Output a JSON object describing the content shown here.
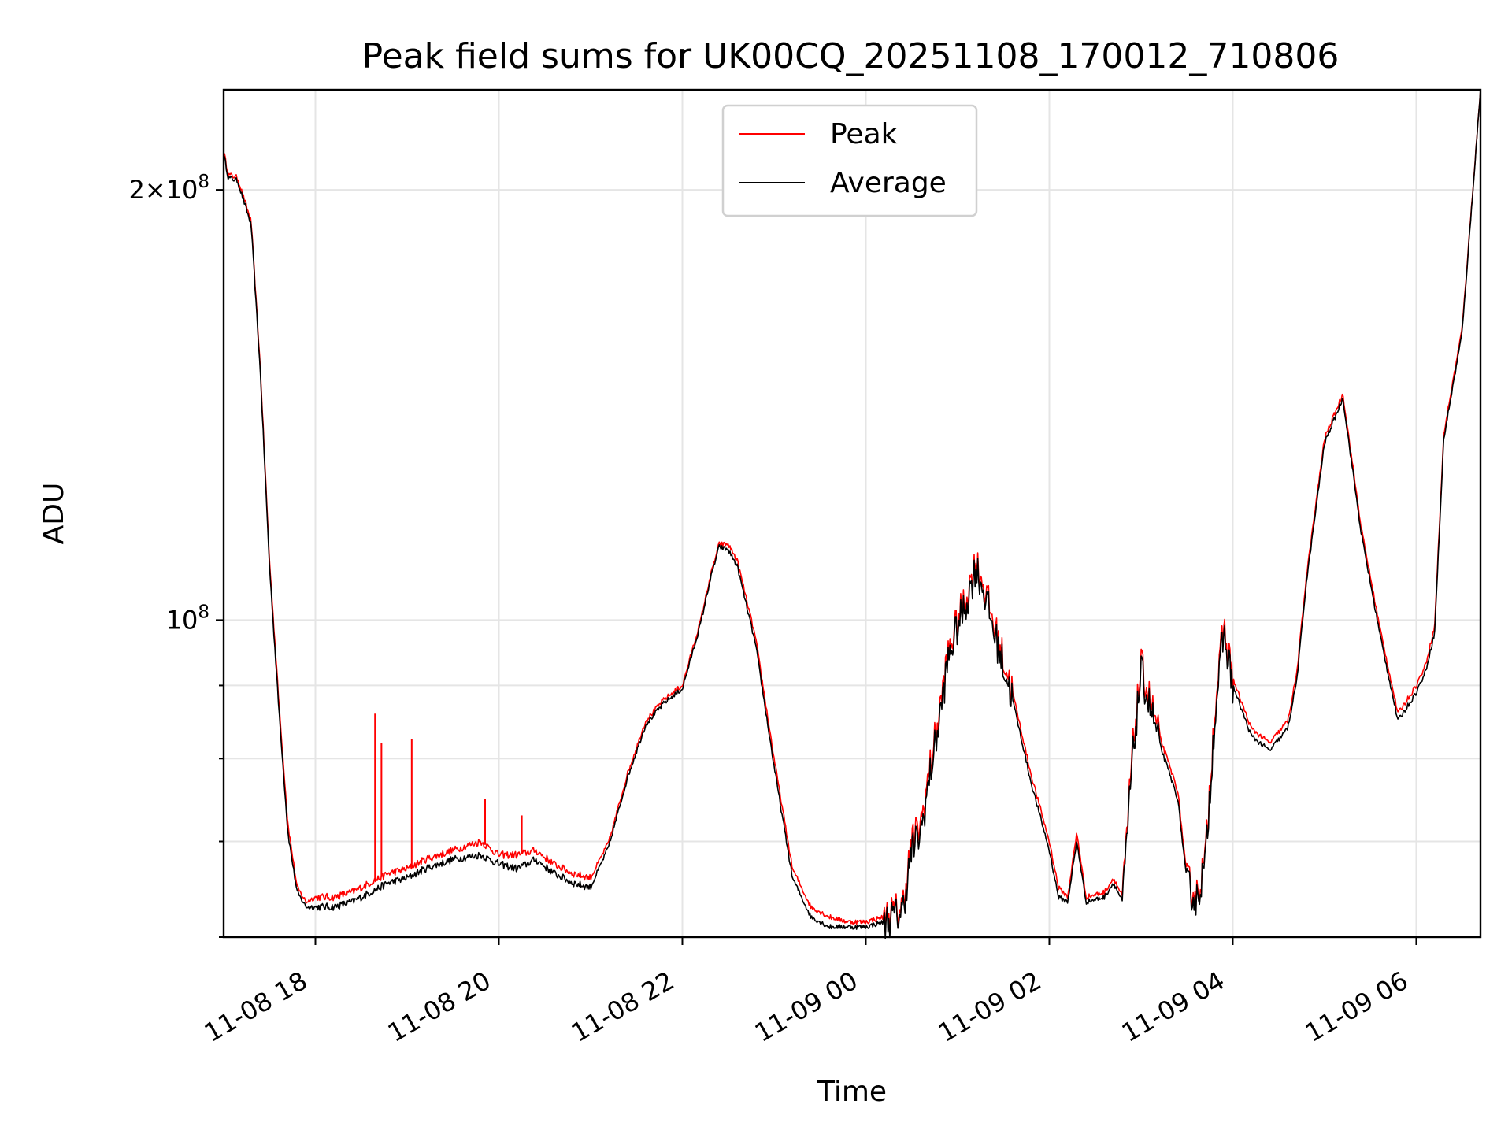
{
  "chart_data": {
    "type": "line",
    "title": "Peak field sums for UK00CQ_20251108_170012_710806",
    "xlabel": "Time",
    "ylabel": "ADU",
    "yscale": "log",
    "grid": true,
    "legend_position": "top-center",
    "x_ticks": [
      "11-08 18",
      "11-08 20",
      "11-08 22",
      "11-09 00",
      "11-09 02",
      "11-09 04",
      "11-09 06"
    ],
    "x_tick_hours": [
      18,
      20,
      22,
      24,
      26,
      28,
      30
    ],
    "x_range_hours": [
      17.0,
      30.7
    ],
    "y_range": [
      60000000,
      235000000
    ],
    "y_major_ticks": [
      {
        "value": 100000000,
        "label": "10^8"
      },
      {
        "value": 200000000,
        "label": "2×10^8"
      }
    ],
    "y_minor_ticks": [
      60000000,
      70000000,
      80000000,
      90000000
    ],
    "series": [
      {
        "name": "Peak",
        "color": "#ff0000",
        "hours": [
          17.0,
          17.05,
          17.15,
          17.3,
          17.4,
          17.5,
          17.6,
          17.7,
          17.8,
          17.9,
          18.0,
          18.2,
          18.4,
          18.6,
          18.8,
          19.0,
          19.2,
          19.5,
          19.8,
          20.0,
          20.2,
          20.4,
          20.6,
          20.8,
          21.0,
          21.2,
          21.4,
          21.6,
          21.8,
          22.0,
          22.2,
          22.3,
          22.4,
          22.5,
          22.6,
          22.8,
          23.0,
          23.2,
          23.4,
          23.6,
          23.8,
          24.0,
          24.2,
          24.4,
          24.5,
          24.6,
          24.7,
          24.8,
          24.9,
          25.0,
          25.1,
          25.2,
          25.3,
          25.4,
          25.6,
          25.8,
          26.0,
          26.1,
          26.2,
          26.3,
          26.4,
          26.6,
          26.7,
          26.8,
          26.9,
          27.0,
          27.2,
          27.4,
          27.5,
          27.6,
          27.7,
          27.8,
          27.9,
          28.0,
          28.2,
          28.4,
          28.6,
          28.7,
          28.8,
          29.0,
          29.2,
          29.4,
          29.6,
          29.8,
          30.0,
          30.1,
          30.2,
          30.3,
          30.5,
          30.7
        ],
        "values": [
          213000000,
          205000000,
          204000000,
          190000000,
          150000000,
          110000000,
          88000000,
          72000000,
          65000000,
          63500000,
          64000000,
          64000000,
          64500000,
          65500000,
          66500000,
          67000000,
          68000000,
          69000000,
          70000000,
          68500000,
          68500000,
          69000000,
          67500000,
          66500000,
          66000000,
          70000000,
          78000000,
          85000000,
          88000000,
          90000000,
          100000000,
          107000000,
          113000000,
          113000000,
          110000000,
          97000000,
          80000000,
          67000000,
          63000000,
          62000000,
          61500000,
          61500000,
          62000000,
          63000000,
          70000000,
          72000000,
          79000000,
          86000000,
          95000000,
          100000000,
          104000000,
          110000000,
          105000000,
          99000000,
          89000000,
          78000000,
          70000000,
          65000000,
          64000000,
          71000000,
          64000000,
          64500000,
          66000000,
          64000000,
          80000000,
          93000000,
          83000000,
          76000000,
          66000000,
          64000000,
          68000000,
          86000000,
          99000000,
          91000000,
          84000000,
          82000000,
          85000000,
          92000000,
          107000000,
          134000000,
          144000000,
          116000000,
          99000000,
          86000000,
          90000000,
          93000000,
          99000000,
          135000000,
          160000000,
          235000000
        ]
      },
      {
        "name": "Average",
        "color": "#000000",
        "hours": [
          17.0,
          17.05,
          17.15,
          17.3,
          17.4,
          17.5,
          17.6,
          17.7,
          17.8,
          17.9,
          18.0,
          18.2,
          18.4,
          18.6,
          18.8,
          19.0,
          19.2,
          19.5,
          19.8,
          20.0,
          20.2,
          20.4,
          20.6,
          20.8,
          21.0,
          21.2,
          21.4,
          21.6,
          21.8,
          22.0,
          22.2,
          22.3,
          22.4,
          22.5,
          22.6,
          22.8,
          23.0,
          23.2,
          23.4,
          23.6,
          23.8,
          24.0,
          24.2,
          24.4,
          24.5,
          24.6,
          24.7,
          24.8,
          24.9,
          25.0,
          25.1,
          25.2,
          25.3,
          25.4,
          25.6,
          25.8,
          26.0,
          26.1,
          26.2,
          26.3,
          26.4,
          26.6,
          26.7,
          26.8,
          26.9,
          27.0,
          27.2,
          27.4,
          27.5,
          27.6,
          27.7,
          27.8,
          27.9,
          28.0,
          28.2,
          28.4,
          28.6,
          28.7,
          28.8,
          29.0,
          29.2,
          29.4,
          29.6,
          29.8,
          30.0,
          30.1,
          30.2,
          30.3,
          30.5,
          30.7
        ],
        "values": [
          212000000,
          204000000,
          203000000,
          189000000,
          149000000,
          109000000,
          87000000,
          71000000,
          64500000,
          63000000,
          63000000,
          63000000,
          63500000,
          64500000,
          65500000,
          66000000,
          67000000,
          68000000,
          68500000,
          67500000,
          67000000,
          68000000,
          66500000,
          65500000,
          65000000,
          69500000,
          77500000,
          84500000,
          87500000,
          89500000,
          99500000,
          106500000,
          112500000,
          112000000,
          109000000,
          96000000,
          79000000,
          66000000,
          62000000,
          61000000,
          61000000,
          61000000,
          61500000,
          62500000,
          69000000,
          71000000,
          78000000,
          85000000,
          94000000,
          99000000,
          103000000,
          109000000,
          104000000,
          98000000,
          88000000,
          77000000,
          69000000,
          64000000,
          63500000,
          70000000,
          63500000,
          64000000,
          65500000,
          63500000,
          79000000,
          92000000,
          82000000,
          75000000,
          65500000,
          63500000,
          67500000,
          85000000,
          98000000,
          90000000,
          83000000,
          81000000,
          84000000,
          91000000,
          106000000,
          133000000,
          143000000,
          115000000,
          98000000,
          85000000,
          89000000,
          92000000,
          98000000,
          134000000,
          159000000,
          235000000
        ]
      }
    ],
    "peak_spikes": [
      {
        "hours": 18.65,
        "value": 86000000
      },
      {
        "hours": 18.72,
        "value": 82000000
      },
      {
        "hours": 19.05,
        "value": 82500000
      },
      {
        "hours": 19.85,
        "value": 75000000
      },
      {
        "hours": 20.25,
        "value": 73000000
      }
    ]
  }
}
